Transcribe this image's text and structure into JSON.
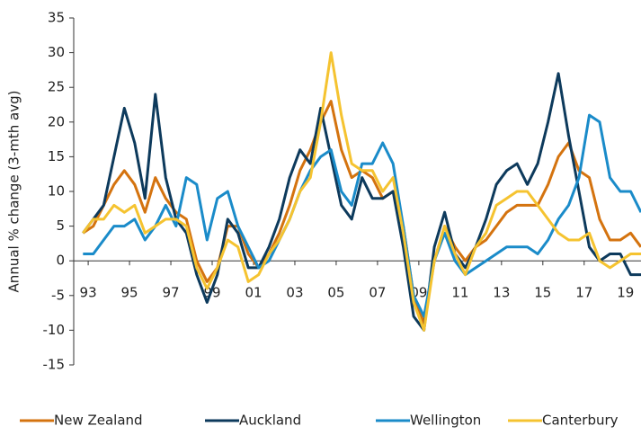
{
  "chart_data": {
    "type": "line",
    "ylabel": "Annual % change (3-mth avg)",
    "x": [
      1992.75,
      1993.25,
      1993.75,
      1994.25,
      1994.75,
      1995.25,
      1995.75,
      1996.25,
      1996.75,
      1997.25,
      1997.75,
      1998.25,
      1998.75,
      1999.25,
      1999.75,
      2000.25,
      2000.75,
      2001.25,
      2001.75,
      2002.25,
      2002.75,
      2003.25,
      2003.75,
      2004.25,
      2004.75,
      2005.25,
      2005.75,
      2006.25,
      2006.75,
      2007.25,
      2007.75,
      2008.25,
      2008.75,
      2009.25,
      2009.75,
      2010.25,
      2010.75,
      2011.25,
      2011.75,
      2012.25,
      2012.75,
      2013.25,
      2013.75,
      2014.25,
      2014.75,
      2015.25,
      2015.75,
      2016.25,
      2016.75,
      2017.25,
      2017.75,
      2018.25,
      2018.75,
      2019.25,
      2019.75
    ],
    "series": [
      {
        "name": "New Zealand",
        "color": "#d4730f",
        "values": [
          4,
          5,
          8,
          11,
          13,
          11,
          7,
          12,
          9,
          7,
          6,
          0,
          -3,
          -1,
          5,
          5,
          1,
          -1,
          1,
          4,
          8,
          13,
          16,
          20,
          23,
          16,
          12,
          13,
          12,
          9,
          10,
          5,
          -5,
          -9,
          0,
          5,
          2,
          0,
          2,
          3,
          5,
          7,
          8,
          8,
          8,
          11,
          15,
          17,
          13,
          12,
          6,
          3,
          3,
          4,
          2
        ]
      },
      {
        "name": "Auckland",
        "color": "#0d3a5c",
        "values": [
          4,
          6,
          8,
          15,
          22,
          17,
          9,
          24,
          12,
          6,
          4,
          -2,
          -6,
          -2,
          6,
          4,
          -1,
          -1,
          2,
          6,
          12,
          16,
          14,
          22,
          15,
          8,
          6,
          12,
          9,
          9,
          10,
          2,
          -8,
          -10,
          2,
          7,
          1,
          -1,
          2,
          6,
          11,
          13,
          14,
          11,
          14,
          20,
          27,
          18,
          10,
          2,
          0,
          1,
          1,
          -2,
          -2
        ]
      },
      {
        "name": "Wellington",
        "color": "#1a8bc9",
        "values": [
          1,
          1,
          3,
          5,
          5,
          6,
          3,
          5,
          8,
          5,
          12,
          11,
          3,
          9,
          10,
          5,
          2,
          -1,
          0,
          3,
          6,
          10,
          13,
          15,
          16,
          10,
          8,
          14,
          14,
          17,
          14,
          5,
          -5,
          -8,
          0,
          4,
          0,
          -2,
          -1,
          0,
          1,
          2,
          2,
          2,
          1,
          3,
          6,
          8,
          12,
          21,
          20,
          12,
          10,
          10,
          7
        ]
      },
      {
        "name": "Canterbury",
        "color": "#f5c330",
        "values": [
          4,
          6,
          6,
          8,
          7,
          8,
          4,
          5,
          6,
          6,
          5,
          -1,
          -4,
          -1,
          3,
          2,
          -3,
          -2,
          1,
          3,
          6,
          10,
          12,
          20,
          30,
          21,
          14,
          13,
          13,
          10,
          12,
          4,
          -6,
          -10,
          0,
          5,
          1,
          -2,
          2,
          4,
          8,
          9,
          10,
          10,
          8,
          6,
          4,
          3,
          3,
          4,
          0,
          -1,
          0,
          1,
          1
        ]
      }
    ],
    "xlim": [
      1992.3,
      2019.75
    ],
    "xticks": [
      {
        "value": 1993,
        "label": "93"
      },
      {
        "value": 1995,
        "label": "95"
      },
      {
        "value": 1997,
        "label": "97"
      },
      {
        "value": 1999,
        "label": "99"
      },
      {
        "value": 2001,
        "label": "01"
      },
      {
        "value": 2003,
        "label": "03"
      },
      {
        "value": 2005,
        "label": "05"
      },
      {
        "value": 2007,
        "label": "07"
      },
      {
        "value": 2009,
        "label": "09"
      },
      {
        "value": 2011,
        "label": "11"
      },
      {
        "value": 2013,
        "label": "13"
      },
      {
        "value": 2015,
        "label": "15"
      },
      {
        "value": 2017,
        "label": "17"
      },
      {
        "value": 2019,
        "label": "19"
      }
    ],
    "ylim": [
      -15,
      35
    ],
    "yticks": [
      -15,
      -10,
      -5,
      0,
      5,
      10,
      15,
      20,
      25,
      30,
      35
    ],
    "grid": false,
    "legend": "bottom"
  }
}
